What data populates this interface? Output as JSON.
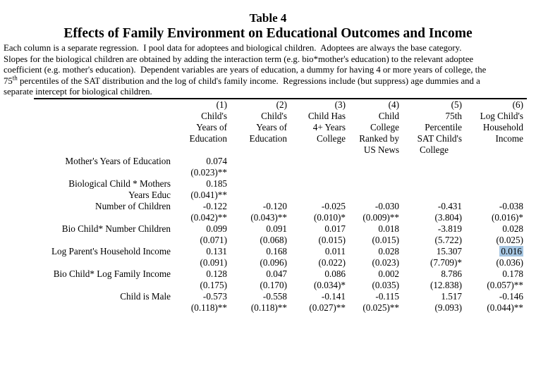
{
  "titles": {
    "small": "Table 4",
    "main": "Effects of Family Environment on Educational Outcomes and Income"
  },
  "note": {
    "line1": "Each column is a separate regression.  I pool data for adoptees and biological children.  Adoptees are always the base category.",
    "line2": "Slopes for the biological children are obtained by adding the interaction term (e.g. bio*mother's education) to the relevant adoptee",
    "line3": "coefficient (e.g. mother's education).  Dependent variables are years of education, a dummy for having 4 or more years of college, the",
    "line4_pre": "75",
    "line4_sup": "th",
    "line4_rest": " percentiles of the SAT distribution and the log of child's family income.  Regressions include (but suppress) age dummies and a",
    "line5": "separate intercept for biological children."
  },
  "highlight": {
    "color": "#a6c6e2"
  },
  "table": {
    "columns": [
      {
        "num": "(1)",
        "lines": [
          "Child's",
          "Years of",
          "Education",
          ""
        ]
      },
      {
        "num": "(2)",
        "lines": [
          "Child's",
          "Years of",
          "Education",
          ""
        ]
      },
      {
        "num": "(3)",
        "lines": [
          "Child Has",
          "4+ Years",
          "College",
          ""
        ]
      },
      {
        "num": "(4)",
        "lines": [
          "Child",
          "College",
          "Ranked by",
          "US News"
        ]
      },
      {
        "num": "(5)",
        "lines": [
          "75th",
          "Percentile",
          "SAT Child's",
          "College"
        ]
      },
      {
        "num": "(6)",
        "lines": [
          "Log Child's",
          "Household",
          "Income",
          ""
        ]
      }
    ],
    "rows": [
      {
        "label1": "Mother's Years of Education",
        "label2": "",
        "cells": [
          {
            "coef": "0.074",
            "se": "(0.023)**"
          },
          {
            "coef": "",
            "se": ""
          },
          {
            "coef": "",
            "se": ""
          },
          {
            "coef": "",
            "se": ""
          },
          {
            "coef": "",
            "se": ""
          },
          {
            "coef": "",
            "se": ""
          }
        ]
      },
      {
        "label1": "Biological Child * Mothers",
        "label2": "Years Educ",
        "cells": [
          {
            "coef": "0.185",
            "se": "(0.041)**"
          },
          {
            "coef": "",
            "se": ""
          },
          {
            "coef": "",
            "se": ""
          },
          {
            "coef": "",
            "se": ""
          },
          {
            "coef": "",
            "se": ""
          },
          {
            "coef": "",
            "se": ""
          }
        ]
      },
      {
        "label1": "Number of Children",
        "label2": "",
        "cells": [
          {
            "coef": "-0.122",
            "se": "(0.042)**"
          },
          {
            "coef": "-0.120",
            "se": "(0.043)**"
          },
          {
            "coef": "-0.025",
            "se": "(0.010)*"
          },
          {
            "coef": "-0.030",
            "se": "(0.009)**"
          },
          {
            "coef": "-0.431",
            "se": "(3.804)"
          },
          {
            "coef": "-0.038",
            "se": "(0.016)*"
          }
        ]
      },
      {
        "label1": "Bio Child* Number Children",
        "label2": "",
        "cells": [
          {
            "coef": "0.099",
            "se": "(0.071)"
          },
          {
            "coef": "0.091",
            "se": "(0.068)"
          },
          {
            "coef": "0.017",
            "se": "(0.015)"
          },
          {
            "coef": "0.018",
            "se": "(0.015)"
          },
          {
            "coef": "-3.819",
            "se": "(5.722)"
          },
          {
            "coef": "0.028",
            "se": "(0.025)"
          }
        ]
      },
      {
        "label1": "Log Parent's Household Income",
        "label2": "",
        "cells": [
          {
            "coef": "0.131",
            "se": "(0.091)"
          },
          {
            "coef": "0.168",
            "se": "(0.096)"
          },
          {
            "coef": "0.011",
            "se": "(0.022)"
          },
          {
            "coef": "0.028",
            "se": "(0.023)"
          },
          {
            "coef": "15.307",
            "se": "(7.709)*"
          },
          {
            "coef": "0.016",
            "se": "(0.036)",
            "highlighted": true
          }
        ]
      },
      {
        "label1": "Bio Child* Log Family Income",
        "label2": "",
        "cells": [
          {
            "coef": "0.128",
            "se": "(0.175)"
          },
          {
            "coef": "0.047",
            "se": "(0.170)"
          },
          {
            "coef": "0.086",
            "se": "(0.034)*"
          },
          {
            "coef": "0.002",
            "se": "(0.035)"
          },
          {
            "coef": "8.786",
            "se": "(12.838)"
          },
          {
            "coef": "0.178",
            "se": "(0.057)**"
          }
        ]
      },
      {
        "label1": "Child is Male",
        "label2": "",
        "cells": [
          {
            "coef": "-0.573",
            "se": "(0.118)**"
          },
          {
            "coef": "-0.558",
            "se": "(0.118)**"
          },
          {
            "coef": "-0.141",
            "se": "(0.027)**"
          },
          {
            "coef": "-0.115",
            "se": "(0.025)**"
          },
          {
            "coef": "1.517",
            "se": "(9.093)"
          },
          {
            "coef": "-0.146",
            "se": "(0.044)**"
          }
        ]
      }
    ]
  }
}
